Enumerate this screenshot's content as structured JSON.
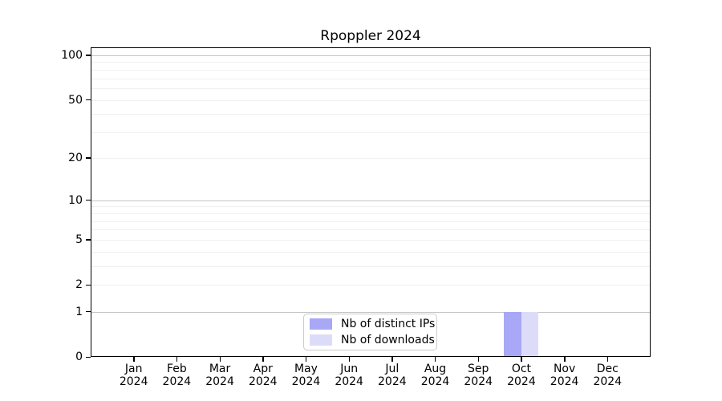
{
  "title": "Rpoppler 2024",
  "legend": {
    "entries": [
      {
        "label": "Nb of distinct IPs"
      },
      {
        "label": "Nb of downloads"
      }
    ]
  },
  "colors": {
    "distinct_ips_bar": "#a8a8f6",
    "downloads_bar": "#dcdcf9",
    "major_gridline": "#c4c4c4",
    "minor_gridline": "#f0f0f0",
    "axis": "#000000",
    "legend_border": "#cccccc"
  },
  "chart_data": {
    "type": "bar",
    "title": "Rpoppler 2024",
    "categories": [
      "Jan 2024",
      "Feb 2024",
      "Mar 2024",
      "Apr 2024",
      "May 2024",
      "Jun 2024",
      "Jul 2024",
      "Aug 2024",
      "Sep 2024",
      "Oct 2024",
      "Nov 2024",
      "Dec 2024"
    ],
    "x_months": [
      "Jan",
      "Feb",
      "Mar",
      "Apr",
      "May",
      "Jun",
      "Jul",
      "Aug",
      "Sep",
      "Oct",
      "Nov",
      "Dec"
    ],
    "x_year": "2024",
    "series": [
      {
        "name": "Nb of distinct IPs",
        "color": "#a8a8f6",
        "values": [
          0,
          0,
          0,
          0,
          0,
          0,
          0,
          0,
          0,
          1,
          0,
          0
        ]
      },
      {
        "name": "Nb of downloads",
        "color": "#dcdcf9",
        "values": [
          0,
          0,
          0,
          0,
          0,
          0,
          0,
          0,
          0,
          1,
          0,
          0
        ]
      }
    ],
    "xlabel": "",
    "ylabel": "",
    "yscale": "log1p",
    "ylim": [
      0,
      113
    ],
    "yticks": [
      0,
      1,
      2,
      5,
      10,
      20,
      50,
      100
    ],
    "y_major_gridlines": [
      1,
      10,
      100
    ],
    "y_minor_gridlines": [
      2,
      3,
      4,
      5,
      6,
      7,
      8,
      9,
      20,
      30,
      40,
      50,
      60,
      70,
      80,
      90
    ],
    "grid": true,
    "legend_position": "lower center"
  }
}
